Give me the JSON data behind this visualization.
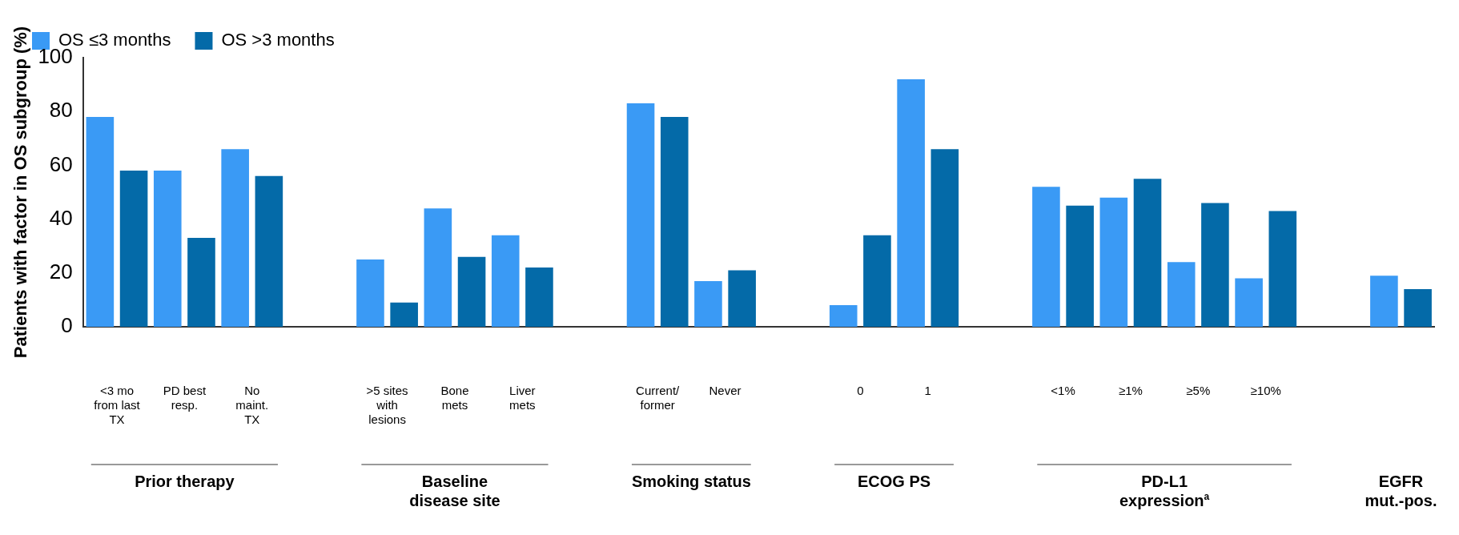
{
  "chart_data": {
    "type": "bar",
    "ylabel": "Patients with factor in OS subgroup (%)",
    "categories": [
      "<3 mo from last TX",
      "PD best resp.",
      "No maint. TX",
      null,
      ">5 sites with lesions",
      "Bone mets",
      "Liver mets",
      null,
      "Current/ former",
      "Never",
      null,
      "0",
      "1",
      null,
      "<1%",
      "≥1%",
      "≥5%",
      "≥10%",
      null,
      null
    ],
    "series": [
      {
        "name": "OS ≤3 months",
        "color": "#3a9af5",
        "values": [
          78,
          58,
          66,
          null,
          25,
          44,
          34,
          null,
          83,
          17,
          null,
          8,
          92,
          null,
          52,
          48,
          24,
          18,
          null,
          19
        ]
      },
      {
        "name": "OS >3 months",
        "color": "#046aa8",
        "values": [
          58,
          33,
          56,
          null,
          9,
          26,
          22,
          null,
          78,
          21,
          null,
          34,
          66,
          null,
          45,
          55,
          46,
          43,
          null,
          14
        ]
      }
    ],
    "ylim": [
      0,
      100
    ],
    "yticks": [
      0,
      20,
      40,
      60,
      80,
      100
    ],
    "grid": false,
    "legend": "top left",
    "annotations": [
      "Prior therapy",
      "Baseline disease site",
      "Smoking status",
      "ECOG PS",
      "PD-L1 expression$^{a}$",
      "EGFR mut.-pos."
    ]
  }
}
